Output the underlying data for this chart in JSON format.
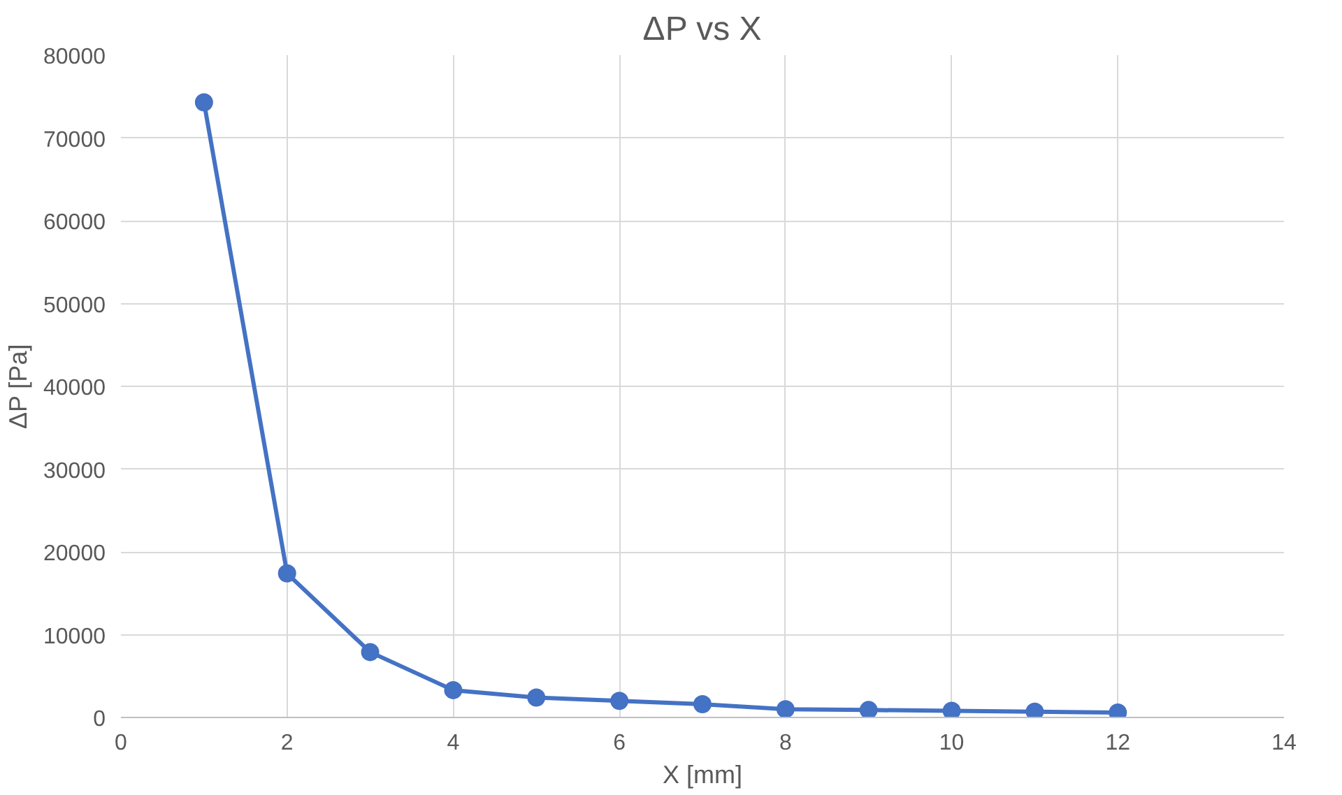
{
  "chart_data": {
    "type": "line",
    "title": "ΔP vs X",
    "xlabel": "X [mm]",
    "ylabel": "ΔP [Pa]",
    "x": [
      1,
      2,
      3,
      4,
      5,
      6,
      7,
      8,
      9,
      10,
      11,
      12
    ],
    "series": [
      {
        "color": "#4472c4",
        "values": [
          74300,
          17400,
          7900,
          3300,
          2400,
          2000,
          1600,
          1000,
          900,
          800,
          700,
          600
        ]
      }
    ],
    "xlim": [
      0,
      14
    ],
    "xticks": [
      0,
      2,
      4,
      6,
      8,
      10,
      12,
      14
    ],
    "ylim": [
      0,
      80000
    ],
    "yticks": [
      0,
      10000,
      20000,
      30000,
      40000,
      50000,
      60000,
      70000,
      80000
    ],
    "grid": true,
    "marker": "circle",
    "line_style": "solid"
  }
}
